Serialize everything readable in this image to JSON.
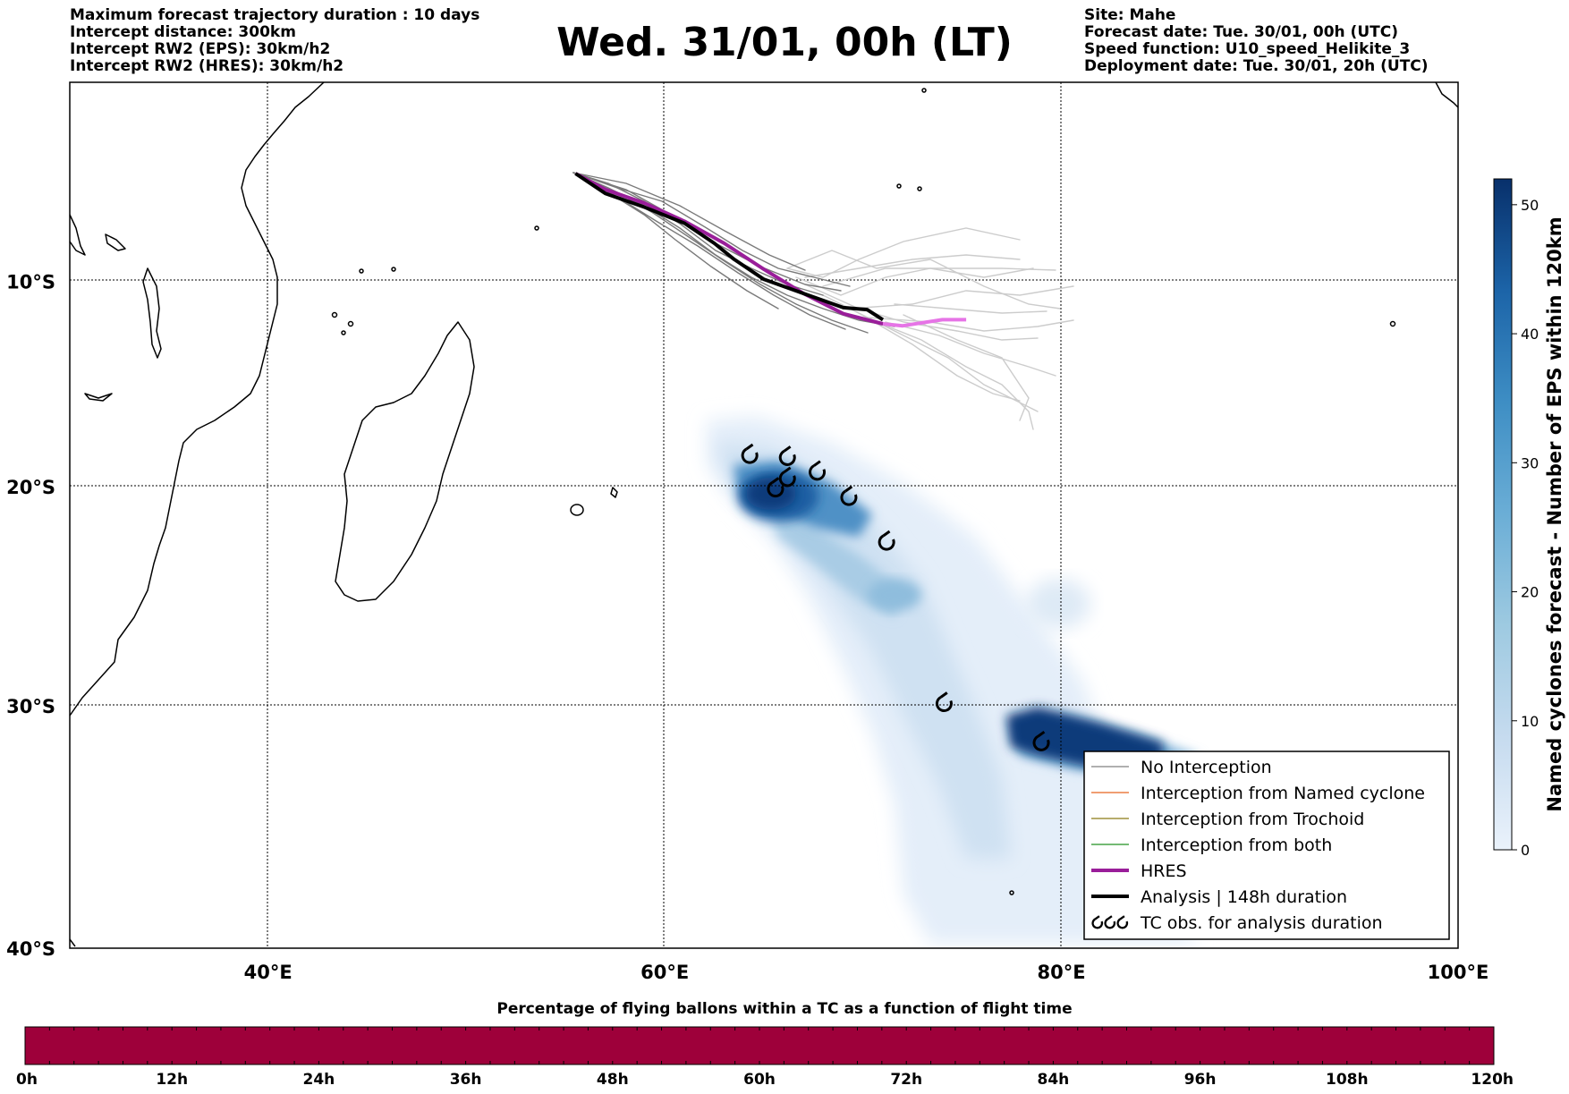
{
  "header_left": [
    "Maximum forecast trajectory duration : 10 days",
    "Intercept distance: 300km",
    "Intercept RW2 (EPS):  30km/h2",
    "Intercept RW2 (HRES): 30km/h2"
  ],
  "title": "Wed. 31/01, 00h (LT)",
  "header_right": [
    "Site: Mahe",
    "Forecast date: Tue. 30/01, 00h (UTC)",
    "Speed function: U10_speed_Helikite_3",
    "Deployment date: Tue. 30/01, 20h (UTC)"
  ],
  "map": {
    "lon_range": [
      30,
      100
    ],
    "lat_range": [
      0,
      -40
    ],
    "lon_ticks": [
      {
        "value": 40,
        "label": "40°E"
      },
      {
        "value": 60,
        "label": "60°E"
      },
      {
        "value": 80,
        "label": "80°E"
      },
      {
        "value": 100,
        "label": "100°E"
      }
    ],
    "lat_ticks": [
      {
        "value": -10,
        "label": "10°S"
      },
      {
        "value": -20,
        "label": "20°S"
      },
      {
        "value": -30,
        "label": "30°S"
      },
      {
        "value": -40,
        "label": "40°S"
      }
    ],
    "tc_obs": [
      {
        "lon": 64.3,
        "lat": -18.5
      },
      {
        "lon": 66.2,
        "lat": -18.6
      },
      {
        "lon": 67.7,
        "lat": -19.3
      },
      {
        "lon": 66.2,
        "lat": -19.6
      },
      {
        "lon": 65.6,
        "lat": -20.1
      },
      {
        "lon": 69.3,
        "lat": -20.5
      },
      {
        "lon": 71.2,
        "lat": -22.6
      },
      {
        "lon": 74.1,
        "lat": -29.9
      },
      {
        "lon": 79.0,
        "lat": -31.6
      }
    ],
    "analysis_track": [
      [
        55.5,
        -4.6
      ],
      [
        57,
        -5.6
      ],
      [
        59,
        -6.3
      ],
      [
        61,
        -7.1
      ],
      [
        62.5,
        -8.1
      ],
      [
        63.5,
        -8.9
      ],
      [
        65,
        -9.9
      ],
      [
        67,
        -10.6
      ],
      [
        69,
        -11.3
      ],
      [
        70.2,
        -11.4
      ],
      [
        71,
        -11.9
      ]
    ],
    "hres_track": [
      [
        55.5,
        -4.6
      ],
      [
        57,
        -5.4
      ],
      [
        59,
        -6.1
      ],
      [
        61,
        -7.0
      ],
      [
        63,
        -8.1
      ],
      [
        65,
        -9.4
      ],
      [
        67,
        -10.6
      ],
      [
        69,
        -11.6
      ],
      [
        71,
        -12.1
      ],
      [
        72,
        -12.2
      ],
      [
        74,
        -11.9
      ],
      [
        75.2,
        -11.9
      ]
    ]
  },
  "legend": {
    "items": [
      {
        "label": "No Interception",
        "color": "#808080",
        "style": "thin"
      },
      {
        "label": "Interception from Named cyclone",
        "color": "#e8641e",
        "style": "thin"
      },
      {
        "label": "Interception from Trochoid",
        "color": "#8c7a14",
        "style": "thin"
      },
      {
        "label": "Interception from both",
        "color": "#209020",
        "style": "thin"
      },
      {
        "label": "HRES",
        "color": "#9a1e9a",
        "style": "thick"
      },
      {
        "label": "Analysis | 148h duration",
        "color": "#000000",
        "style": "thick"
      },
      {
        "label": "TC obs. for analysis duration",
        "color": "#000000",
        "style": "symbol"
      }
    ]
  },
  "colorbar": {
    "label": "Named cyclones forecast - Number of EPS within 120km",
    "range": [
      0,
      52
    ],
    "ticks": [
      "0",
      "10",
      "20",
      "30",
      "40",
      "50"
    ],
    "colors": [
      "#eaf2fb",
      "#c6dbef",
      "#9ecae1",
      "#6baed6",
      "#3e8ec4",
      "#1c64a8",
      "#08306b"
    ]
  },
  "timebar": {
    "title": "Percentage of flying ballons within a TC as a function of flight time",
    "fill_color": "#9e003a",
    "ticks": [
      "0h",
      "12h",
      "24h",
      "36h",
      "48h",
      "60h",
      "72h",
      "84h",
      "96h",
      "108h",
      "120h"
    ]
  }
}
